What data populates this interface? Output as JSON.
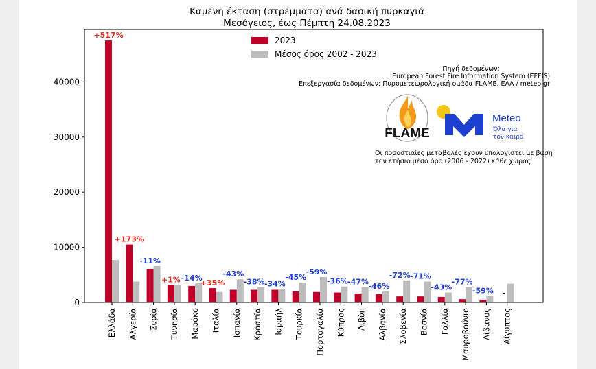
{
  "chart_data": {
    "type": "bar",
    "title_line1": "Καμένη έκταση (στρέμματα) ανά δασική πυρκαγιά",
    "title_line2": "Μεσόγειος, έως Πέμπτη 24.08.2023",
    "categories": [
      "Ελλάδα",
      "Αλγερία",
      "Συρία",
      "Τυνησία",
      "Μαρόκο",
      "Ιταλία",
      "Ισπανία",
      "Κροατία",
      "Ισραήλ",
      "Τουρκία",
      "Πορτογαλία",
      "Κύπρος",
      "Λιβύη",
      "Αλβανία",
      "Σλοβενία",
      "Βοσνία",
      "Γαλλία",
      "Μαυροβούνιο",
      "Λίβανος",
      "Αίγυπτος"
    ],
    "series": [
      {
        "name": "2023",
        "color": "#c1002a",
        "values": [
          47500,
          10500,
          6100,
          3200,
          3000,
          2600,
          2300,
          2300,
          2300,
          2000,
          1900,
          1800,
          1600,
          1500,
          1100,
          1100,
          1000,
          600,
          500,
          0
        ]
      },
      {
        "name": "Μέσος όρος 2002 - 2023",
        "color": "#bdbdbd",
        "values": [
          7700,
          3800,
          6600,
          3200,
          3500,
          1900,
          4200,
          2800,
          2400,
          3600,
          4600,
          2900,
          2800,
          2000,
          4000,
          3800,
          1800,
          2800,
          1200,
          3400
        ]
      }
    ],
    "labels": [
      "+517%",
      "+173%",
      "-11%",
      "+1%",
      "-14%",
      "+35%",
      "-43%",
      "-38%",
      "-34%",
      "-45%",
      "-59%",
      "-36%",
      "-47%",
      "-46%",
      "-72%",
      "-71%",
      "-43%",
      "-77%",
      "-59%",
      "-"
    ],
    "label_colors": {
      "positive": "#e8261c",
      "negative": "#1f3fd6",
      "none": "#000000"
    },
    "yticks": [
      0,
      10000,
      20000,
      30000,
      40000
    ],
    "ytick_labels": [
      "0",
      "10000",
      "20000",
      "30000",
      "40000"
    ],
    "ylim": [
      0,
      49500
    ],
    "legend_position": "top-center",
    "grid": false
  },
  "annotations": {
    "source_line1": "Πηγή δεδομένων:",
    "source_line2": "European Forest Fire Information System (EFFIS)",
    "source_line3": "Επεξεργασία δεδομένων: Πυρομετεωρολογική ομάδα FLAME, ΕΑΑ / meteo.gr",
    "note_line1": "Οι ποσοστιαίες μεταβολές έχουν υπολογιστεί με βάση",
    "note_line2": "τον ετήσιο μέσο όρο (2006 - 2022) κάθε χώρας"
  },
  "logos": {
    "flame_text": "FLAME",
    "flame_ring_text": "EXTREME FIRE WEATHER & FIRE BEHAVIOUR",
    "meteo_name": "Meteo",
    "meteo_tagline1": "Όλα για",
    "meteo_tagline2": "τον καιρό",
    "flame_color": "#f39a1b",
    "meteo_blue": "#1c3fcf",
    "meteo_sun": "#f5c518"
  }
}
